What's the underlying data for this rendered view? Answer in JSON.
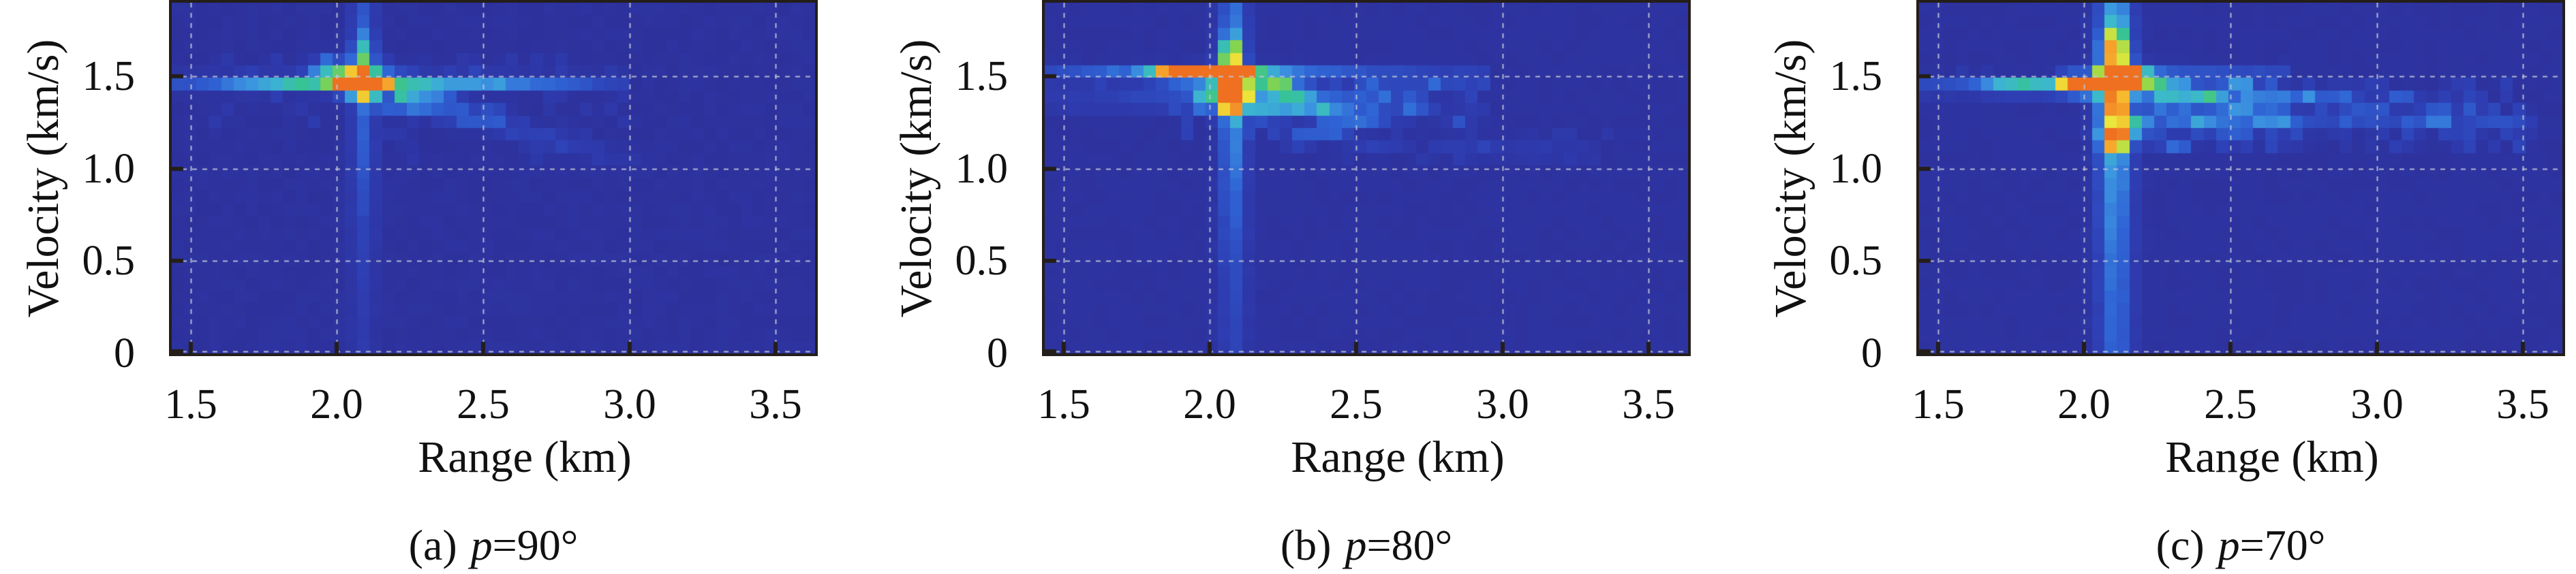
{
  "figure_title": "",
  "style": {
    "background_color": "#ffffff",
    "heatmap_background": "#2d2d95",
    "grid_color": "rgba(195,200,214,0.9)",
    "axis_color": "#241e1a",
    "text_color": "#111111",
    "colormap": "jet-like",
    "colormap_stops": [
      [
        0.0,
        "#2d2d95"
      ],
      [
        0.18,
        "#2e3eb3"
      ],
      [
        0.34,
        "#2f62d4"
      ],
      [
        0.46,
        "#3b93e0"
      ],
      [
        0.56,
        "#3cb8cf"
      ],
      [
        0.64,
        "#37c393"
      ],
      [
        0.73,
        "#86d44d"
      ],
      [
        0.81,
        "#e9e93c"
      ],
      [
        0.89,
        "#f6c02f"
      ],
      [
        0.95,
        "#f59d2a"
      ],
      [
        1.0,
        "#ee7020"
      ]
    ]
  },
  "chart_data": [
    {
      "type": "heatmap",
      "caption": {
        "index": "(a)",
        "variable": "p",
        "value": "=90°",
        "full": "(a) p=90°"
      },
      "xlabel": "Range (km)",
      "ylabel": "Velocity (km/s)",
      "xlim": [
        1.435,
        3.635
      ],
      "ylim": [
        0,
        1.9
      ],
      "xticks": [
        "1.5",
        "2.0",
        "2.5",
        "3.0",
        "3.5"
      ],
      "yticks": [
        "0",
        "0.5",
        "1.0",
        "1.5"
      ],
      "xtick_values": [
        1.5,
        2.0,
        2.5,
        3.0,
        3.5
      ],
      "ytick_values": [
        0,
        0.5,
        1.0,
        1.5
      ],
      "grid": true,
      "grid_style": "dashed",
      "peaks": [
        {
          "range_km": 2.09,
          "velocity_kms": 1.47,
          "relative_intensity": 1.0
        }
      ],
      "features": {
        "cols": 52,
        "rows": 28,
        "seed": 5,
        "background_level": 0.04,
        "vertical_stripe": {
          "r": 2.09,
          "sigma_r": 0.03,
          "base_amp": 0.09,
          "peak_amp": 0.2,
          "v_center": 1.45,
          "v_spread": 0.5
        },
        "horizontal_stripes": [
          {
            "v": 1.47,
            "sigma_v": 0.03,
            "base_amp": 0.11,
            "peak_amp": 0.26,
            "r_center": 2.05,
            "r_spread": 0.45,
            "r_min": 1.435,
            "r_max": 3.0
          }
        ],
        "blobs": [
          [
            2.09,
            1.47,
            0.03,
            0.03,
            1.0
          ],
          [
            2.05,
            1.47,
            0.03,
            0.028,
            0.85
          ],
          [
            2.09,
            1.47,
            0.07,
            0.055,
            0.4
          ],
          [
            2.09,
            1.43,
            0.04,
            0.035,
            0.5
          ],
          [
            2.14,
            1.47,
            0.04,
            0.03,
            0.45
          ],
          [
            2.0,
            1.5,
            0.05,
            0.035,
            0.35
          ],
          [
            1.97,
            1.56,
            0.045,
            0.04,
            0.3
          ],
          [
            2.09,
            1.58,
            0.03,
            0.05,
            0.3
          ],
          [
            2.09,
            1.68,
            0.025,
            0.045,
            0.2
          ],
          [
            1.87,
            1.47,
            0.07,
            0.03,
            0.2
          ],
          [
            1.72,
            1.45,
            0.08,
            0.03,
            0.13
          ],
          [
            2.28,
            1.43,
            0.05,
            0.03,
            0.32
          ],
          [
            2.36,
            1.4,
            0.05,
            0.03,
            0.26
          ],
          [
            2.2,
            1.35,
            0.05,
            0.035,
            0.2
          ],
          [
            2.46,
            1.47,
            0.08,
            0.028,
            0.16
          ],
          [
            2.52,
            1.3,
            0.05,
            0.03,
            0.16
          ],
          [
            2.64,
            1.47,
            0.08,
            0.025,
            0.12
          ],
          [
            2.8,
            1.45,
            0.07,
            0.025,
            0.09
          ]
        ],
        "tails": [
          {
            "from": [
              2.2,
              1.385
            ],
            "to": [
              2.62,
              1.21
            ],
            "sigma": 0.035,
            "amp_start": 0.34,
            "amp_end": 0.14
          },
          {
            "from": [
              2.62,
              1.21
            ],
            "to": [
              3.05,
              1.02
            ],
            "sigma": 0.035,
            "amp_start": 0.15,
            "amp_end": 0.04
          }
        ],
        "speckles": [
          {
            "r_min": 1.55,
            "r_max": 3.0,
            "v_min": 1.25,
            "v_max": 1.62,
            "amp": 0.09,
            "density": 0.3
          },
          {
            "r_min": 2.1,
            "r_max": 2.9,
            "v_min": 1.05,
            "v_max": 1.35,
            "amp": 0.07,
            "density": 0.22
          }
        ]
      }
    },
    {
      "type": "heatmap",
      "caption": {
        "index": "(b)",
        "variable": "p",
        "value": "=80°",
        "full": "(b) p=80°"
      },
      "xlabel": "Range (km)",
      "ylabel": "Velocity (km/s)",
      "xlim": [
        1.435,
        3.635
      ],
      "ylim": [
        0,
        1.9
      ],
      "xticks": [
        "1.5",
        "2.0",
        "2.5",
        "3.0",
        "3.5"
      ],
      "yticks": [
        "0",
        "0.5",
        "1.0",
        "1.5"
      ],
      "xtick_values": [
        1.5,
        2.0,
        2.5,
        3.0,
        3.5
      ],
      "ytick_values": [
        0,
        0.5,
        1.0,
        1.5
      ],
      "grid": true,
      "grid_style": "dashed",
      "peaks": [
        {
          "range_km": 1.98,
          "velocity_kms": 1.51,
          "relative_intensity": 1.0
        },
        {
          "range_km": 2.07,
          "velocity_kms": 1.51,
          "relative_intensity": 1.0
        },
        {
          "range_km": 2.07,
          "velocity_kms": 1.37,
          "relative_intensity": 0.85
        }
      ],
      "features": {
        "cols": 52,
        "rows": 28,
        "seed": 9,
        "background_level": 0.05,
        "vertical_stripe": {
          "r": 2.08,
          "sigma_r": 0.033,
          "base_amp": 0.14,
          "peak_amp": 0.25,
          "v_center": 1.4,
          "v_spread": 0.55
        },
        "horizontal_stripes": [
          {
            "v": 1.51,
            "sigma_v": 0.03,
            "base_amp": 0.13,
            "peak_amp": 0.3,
            "r_center": 2.03,
            "r_spread": 0.35,
            "r_min": 1.435,
            "r_max": 2.95
          },
          {
            "v": 1.365,
            "sigma_v": 0.03,
            "base_amp": 0.1,
            "peak_amp": 0.22,
            "r_center": 2.07,
            "r_spread": 0.3,
            "r_min": 1.435,
            "r_max": 2.6
          }
        ],
        "blobs": [
          [
            1.975,
            1.51,
            0.032,
            0.027,
            1.0
          ],
          [
            2.065,
            1.51,
            0.032,
            0.027,
            1.0
          ],
          [
            2.02,
            1.51,
            0.05,
            0.027,
            0.7
          ],
          [
            1.9,
            1.51,
            0.04,
            0.027,
            0.6
          ],
          [
            1.84,
            1.51,
            0.04,
            0.025,
            0.45
          ],
          [
            2.12,
            1.51,
            0.035,
            0.027,
            0.55
          ],
          [
            2.065,
            1.365,
            0.03,
            0.027,
            0.85
          ],
          [
            2.11,
            1.365,
            0.035,
            0.025,
            0.6
          ],
          [
            2.0,
            1.365,
            0.04,
            0.025,
            0.35
          ],
          [
            2.07,
            1.44,
            0.035,
            0.05,
            0.55
          ],
          [
            2.07,
            1.58,
            0.03,
            0.05,
            0.4
          ],
          [
            2.07,
            1.66,
            0.028,
            0.05,
            0.3
          ],
          [
            2.2,
            1.47,
            0.05,
            0.035,
            0.45
          ],
          [
            2.26,
            1.42,
            0.055,
            0.035,
            0.4
          ],
          [
            2.2,
            1.3,
            0.05,
            0.035,
            0.3
          ],
          [
            2.33,
            1.35,
            0.055,
            0.035,
            0.35
          ],
          [
            2.45,
            1.3,
            0.06,
            0.035,
            0.3
          ],
          [
            2.42,
            1.22,
            0.05,
            0.03,
            0.25
          ],
          [
            2.55,
            1.26,
            0.06,
            0.03,
            0.25
          ],
          [
            2.68,
            1.34,
            0.06,
            0.03,
            0.22
          ],
          [
            2.6,
            1.42,
            0.07,
            0.03,
            0.22
          ],
          [
            2.78,
            1.44,
            0.07,
            0.025,
            0.18
          ],
          [
            2.3,
            1.16,
            0.05,
            0.03,
            0.18
          ],
          [
            2.55,
            1.13,
            0.06,
            0.025,
            0.14
          ],
          [
            2.85,
            1.28,
            0.06,
            0.025,
            0.15
          ]
        ],
        "tails": [
          {
            "from": [
              2.75,
              1.12
            ],
            "to": [
              3.35,
              1.08
            ],
            "sigma": 0.04,
            "amp_start": 0.1,
            "amp_end": 0.04
          }
        ],
        "speckles": [
          {
            "r_min": 1.9,
            "r_max": 2.95,
            "v_min": 1.15,
            "v_max": 1.5,
            "amp": 0.14,
            "density": 0.45
          },
          {
            "r_min": 2.2,
            "r_max": 3.4,
            "v_min": 1.02,
            "v_max": 1.2,
            "amp": 0.07,
            "density": 0.3
          },
          {
            "r_min": 1.5,
            "r_max": 1.9,
            "v_min": 1.3,
            "v_max": 1.55,
            "amp": 0.07,
            "density": 0.25
          }
        ]
      }
    },
    {
      "type": "heatmap",
      "caption": {
        "index": "(c)",
        "variable": "p",
        "value": "=70°",
        "full": "(c) p=70°"
      },
      "xlabel": "Range (km)",
      "ylabel": "Velocity (km/s)",
      "xlim": [
        1.435,
        3.635
      ],
      "ylim": [
        0,
        1.9
      ],
      "xticks": [
        "1.5",
        "2.0",
        "2.5",
        "3.0",
        "3.5"
      ],
      "yticks": [
        "0",
        "0.5",
        "1.0",
        "1.5"
      ],
      "xtick_values": [
        1.5,
        2.0,
        2.5,
        3.0,
        3.5
      ],
      "ytick_values": [
        0,
        0.5,
        1.0,
        1.5
      ],
      "grid": true,
      "grid_style": "dashed",
      "peaks": [
        {
          "range_km": 2.1,
          "velocity_kms": 1.52,
          "relative_intensity": 1.0
        },
        {
          "range_km": 1.99,
          "velocity_kms": 1.44,
          "relative_intensity": 0.95
        },
        {
          "range_km": 2.1,
          "velocity_kms": 1.21,
          "relative_intensity": 0.7
        }
      ],
      "features": {
        "cols": 52,
        "rows": 28,
        "seed": 13,
        "background_level": 0.05,
        "vertical_stripe": {
          "r": 2.105,
          "sigma_r": 0.042,
          "base_amp": 0.28,
          "peak_amp": 0.2,
          "v_center": 1.45,
          "v_spread": 0.6
        },
        "horizontal_stripes": [
          {
            "v": 1.44,
            "sigma_v": 0.028,
            "base_amp": 0.12,
            "peak_amp": 0.25,
            "r_center": 1.95,
            "r_spread": 0.35,
            "r_min": 1.435,
            "r_max": 2.2
          },
          {
            "v": 1.52,
            "sigma_v": 0.028,
            "base_amp": 0.06,
            "peak_amp": 0.15,
            "r_center": 2.3,
            "r_spread": 0.4,
            "r_min": 1.9,
            "r_max": 2.7
          },
          {
            "v": 1.25,
            "sigma_v": 0.03,
            "base_amp": 0.07,
            "peak_amp": 0.1,
            "r_center": 2.8,
            "r_spread": 0.6,
            "r_min": 2.1,
            "r_max": 3.55
          }
        ],
        "blobs": [
          [
            2.105,
            1.52,
            0.035,
            0.03,
            1.0
          ],
          [
            2.16,
            1.52,
            0.04,
            0.027,
            0.5
          ],
          [
            1.99,
            1.44,
            0.027,
            0.025,
            0.95
          ],
          [
            1.94,
            1.44,
            0.04,
            0.025,
            0.6
          ],
          [
            2.04,
            1.44,
            0.035,
            0.025,
            0.55
          ],
          [
            1.8,
            1.44,
            0.05,
            0.025,
            0.35
          ],
          [
            1.7,
            1.44,
            0.05,
            0.022,
            0.22
          ],
          [
            2.105,
            1.44,
            0.04,
            0.04,
            0.6
          ],
          [
            2.105,
            1.33,
            0.035,
            0.035,
            0.5
          ],
          [
            2.105,
            1.21,
            0.04,
            0.033,
            0.7
          ],
          [
            2.105,
            1.12,
            0.035,
            0.03,
            0.4
          ],
          [
            2.105,
            1.62,
            0.035,
            0.05,
            0.45
          ],
          [
            2.105,
            1.72,
            0.03,
            0.05,
            0.3
          ],
          [
            2.2,
            1.47,
            0.05,
            0.035,
            0.45
          ],
          [
            2.3,
            1.43,
            0.06,
            0.04,
            0.45
          ],
          [
            2.28,
            1.35,
            0.05,
            0.035,
            0.35
          ],
          [
            2.42,
            1.39,
            0.06,
            0.035,
            0.4
          ],
          [
            2.52,
            1.44,
            0.055,
            0.03,
            0.32
          ],
          [
            2.55,
            1.34,
            0.06,
            0.03,
            0.3
          ],
          [
            2.65,
            1.4,
            0.06,
            0.03,
            0.3
          ],
          [
            2.63,
            1.28,
            0.05,
            0.03,
            0.25
          ],
          [
            2.78,
            1.37,
            0.07,
            0.03,
            0.27
          ],
          [
            2.9,
            1.42,
            0.06,
            0.027,
            0.2
          ],
          [
            2.95,
            1.33,
            0.06,
            0.027,
            0.22
          ],
          [
            3.08,
            1.37,
            0.06,
            0.025,
            0.18
          ],
          [
            3.2,
            1.33,
            0.06,
            0.025,
            0.15
          ],
          [
            3.35,
            1.3,
            0.05,
            0.025,
            0.12
          ],
          [
            2.4,
            1.25,
            0.05,
            0.03,
            0.28
          ],
          [
            2.5,
            1.18,
            0.05,
            0.03,
            0.22
          ],
          [
            2.3,
            1.13,
            0.05,
            0.028,
            0.2
          ],
          [
            2.7,
            1.15,
            0.05,
            0.025,
            0.15
          ],
          [
            2.2,
            1.24,
            0.04,
            0.03,
            0.25
          ]
        ],
        "tails": [],
        "speckles": [
          {
            "r_min": 2.05,
            "r_max": 3.5,
            "v_min": 1.1,
            "v_max": 1.5,
            "amp": 0.15,
            "density": 0.5
          },
          {
            "r_min": 1.5,
            "r_max": 2.0,
            "v_min": 1.35,
            "v_max": 1.55,
            "amp": 0.06,
            "density": 0.2
          },
          {
            "r_min": 2.2,
            "r_max": 3.55,
            "v_min": 1.18,
            "v_max": 1.3,
            "amp": 0.08,
            "density": 0.35
          }
        ]
      }
    }
  ]
}
